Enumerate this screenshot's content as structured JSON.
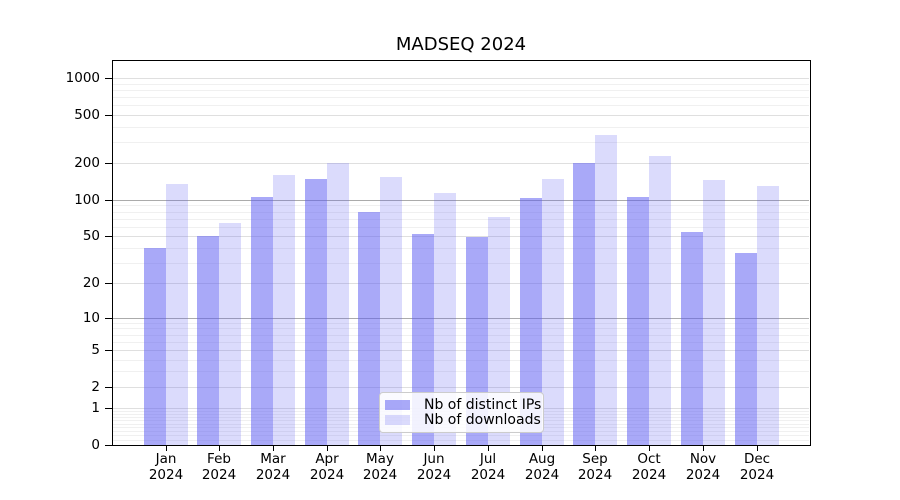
{
  "title": "MADSEQ 2024",
  "chart_data": {
    "type": "bar",
    "title": "MADSEQ 2024",
    "xlabel": "",
    "ylabel": "",
    "grid": true,
    "y_axis": {
      "scale": "log10(value+1)",
      "tick_labels": [
        "1000",
        "500",
        "200",
        "100",
        "50",
        "20",
        "10",
        "5",
        "2",
        "1",
        "0"
      ],
      "tick_values": [
        1000,
        500,
        200,
        100,
        50,
        20,
        10,
        5,
        2,
        1,
        0
      ],
      "range_top_approx": 1400
    },
    "categories": [
      "Jan",
      "Feb",
      "Mar",
      "Apr",
      "May",
      "Jun",
      "Jul",
      "Aug",
      "Sep",
      "Oct",
      "Nov",
      "Dec"
    ],
    "x_tick_year": "2024",
    "series": [
      {
        "name": "Nb of distinct IPs",
        "color": "rgba(90,90,242,0.52)",
        "values": [
          40,
          50,
          106,
          149,
          80,
          52,
          49,
          103,
          200,
          105,
          54,
          36
        ]
      },
      {
        "name": "Nb of downloads",
        "color": "rgba(90,90,242,0.22)",
        "values": [
          135,
          65,
          161,
          202,
          155,
          115,
          72,
          149,
          340,
          230,
          146,
          130
        ]
      }
    ],
    "legend": {
      "position": "bottom-center",
      "entries": [
        "Nb of distinct IPs",
        "Nb of downloads"
      ]
    },
    "colors": {
      "axis": "#000000",
      "grid_power_of_ten": "#ababab",
      "grid_labeled": "#dfdfdf",
      "grid_minor": "#f0f0f0",
      "legend_border": "#cccccc",
      "legend_background": "rgba(255,255,255,0.85)"
    }
  }
}
